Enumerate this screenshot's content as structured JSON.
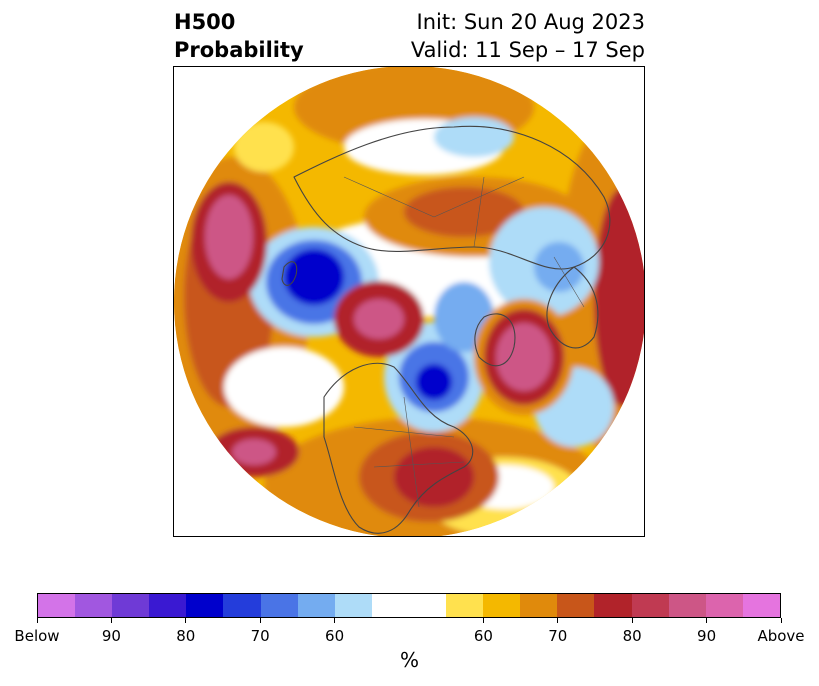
{
  "title": {
    "left_line1": "H500",
    "left_line2": "Probability",
    "right_line1": "Init: Sun 20 Aug 2023",
    "right_line2": "Valid: 11 Sep – 17 Sep"
  },
  "colorbar": {
    "unit": "%",
    "colors": [
      "#d373e8",
      "#a157e0",
      "#6f3ad6",
      "#3a19d2",
      "#0000cc",
      "#243ddb",
      "#4a74e6",
      "#74acf0",
      "#aedcf8",
      "#ffffff",
      "#ffffff",
      "#ffe14e",
      "#f4b800",
      "#e08a0c",
      "#c8561a",
      "#b1232a",
      "#c03a52",
      "#cd5686",
      "#dc64ad",
      "#e574df"
    ],
    "tick_labels": [
      "Below",
      "90",
      "80",
      "70",
      "60",
      "60",
      "70",
      "80",
      "90",
      "Above"
    ]
  }
}
